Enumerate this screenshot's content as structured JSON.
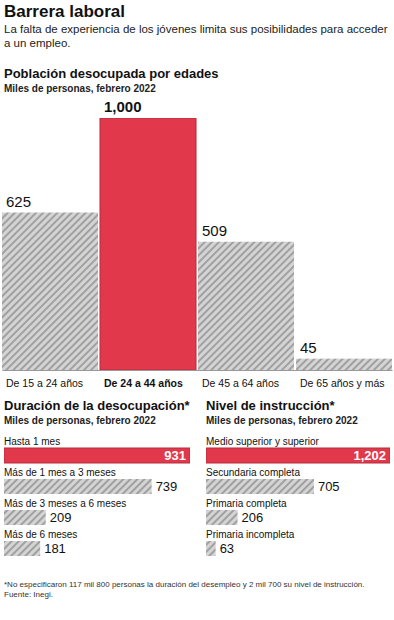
{
  "header": {
    "title": "Barrera laboral",
    "subtitle": "La falta de experiencia de los jóvenes limita sus posibilidades para acceder a un empleo."
  },
  "chart_data": [
    {
      "type": "bar",
      "title": "Población desocupada por edades",
      "subtitle": "Miles de personas, febrero 2022",
      "categories": [
        "De 15 a 24 años",
        "De 24 a 44 años",
        "De 45 a 64 años",
        "De 65 años y más"
      ],
      "values": [
        625,
        1000,
        509,
        45
      ],
      "value_labels": [
        "625",
        "1,000",
        "509",
        "45"
      ],
      "colors": [
        "#d4d4d4",
        "#e2384c",
        "#d4d4d4",
        "#d4d4d4"
      ],
      "ylim": [
        0,
        1000
      ],
      "data_labels": true,
      "tick_labels": "x"
    },
    {
      "type": "bar",
      "orientation": "horizontal",
      "title": "Duración de la desocupación*",
      "subtitle": "Miles de personas, febrero 2022",
      "categories": [
        "Hasta 1 mes",
        "Más de 1 mes a 3 meses",
        "Más de 3 meses a 6 meses",
        "Más de 6 meses"
      ],
      "values": [
        931,
        739,
        209,
        181
      ],
      "colors": [
        "#e2384c",
        "#d4d4d4",
        "#d4d4d4",
        "#d4d4d4"
      ],
      "xlim": [
        0,
        931
      ],
      "data_labels": true,
      "tick_labels": "y"
    },
    {
      "type": "bar",
      "orientation": "horizontal",
      "title": "Nivel de instrucción*",
      "subtitle": "Miles de personas, febrero 2022",
      "categories": [
        "Medio superior y superior",
        "Secundaria completa",
        "Primaria completa",
        "Primaria incompleta"
      ],
      "values": [
        1202,
        705,
        206,
        63
      ],
      "value_labels": [
        "1,202",
        "705",
        "206",
        "63"
      ],
      "colors": [
        "#e2384c",
        "#d4d4d4",
        "#d4d4d4",
        "#d4d4d4"
      ],
      "xlim": [
        0,
        1202
      ],
      "data_labels": true,
      "tick_labels": "y"
    }
  ],
  "footer": {
    "note": "*No especificaron 117 mil 800 personas la duración del desempleo y 2 mil 700 su nivel de instrucción.",
    "source": "Fuente: Inegi."
  }
}
